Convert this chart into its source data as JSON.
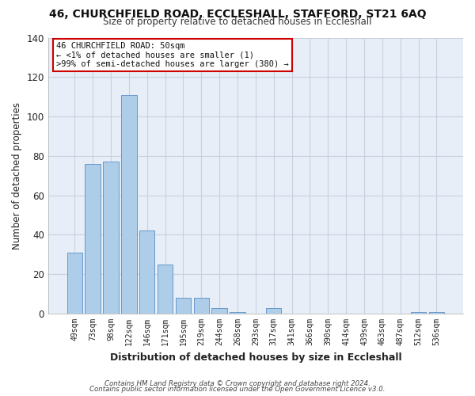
{
  "title1": "46, CHURCHFIELD ROAD, ECCLESHALL, STAFFORD, ST21 6AQ",
  "title2": "Size of property relative to detached houses in Eccleshall",
  "xlabel": "Distribution of detached houses by size in Eccleshall",
  "ylabel": "Number of detached properties",
  "bin_labels": [
    "49sqm",
    "73sqm",
    "98sqm",
    "122sqm",
    "146sqm",
    "171sqm",
    "195sqm",
    "219sqm",
    "244sqm",
    "268sqm",
    "293sqm",
    "317sqm",
    "341sqm",
    "366sqm",
    "390sqm",
    "414sqm",
    "439sqm",
    "463sqm",
    "487sqm",
    "512sqm",
    "536sqm"
  ],
  "bin_values": [
    31,
    76,
    77,
    111,
    42,
    25,
    8,
    8,
    3,
    1,
    0,
    3,
    0,
    0,
    0,
    0,
    0,
    0,
    0,
    1,
    1
  ],
  "bar_color": "#aecde8",
  "bar_edge_color": "#6699cc",
  "ylim": [
    0,
    140
  ],
  "yticks": [
    0,
    20,
    40,
    60,
    80,
    100,
    120,
    140
  ],
  "annotation_line1": "46 CHURCHFIELD ROAD: 50sqm",
  "annotation_line2": "← <1% of detached houses are smaller (1)",
  "annotation_line3": ">99% of semi-detached houses are larger (380) →",
  "annotation_box_color": "#cc0000",
  "annotation_fill_color": "#ffffff",
  "footer1": "Contains HM Land Registry data © Crown copyright and database right 2024.",
  "footer2": "Contains public sector information licensed under the Open Government Licence v3.0.",
  "bg_color": "#ffffff",
  "plot_bg_color": "#e8eef8",
  "grid_color": "#c8d0e0"
}
